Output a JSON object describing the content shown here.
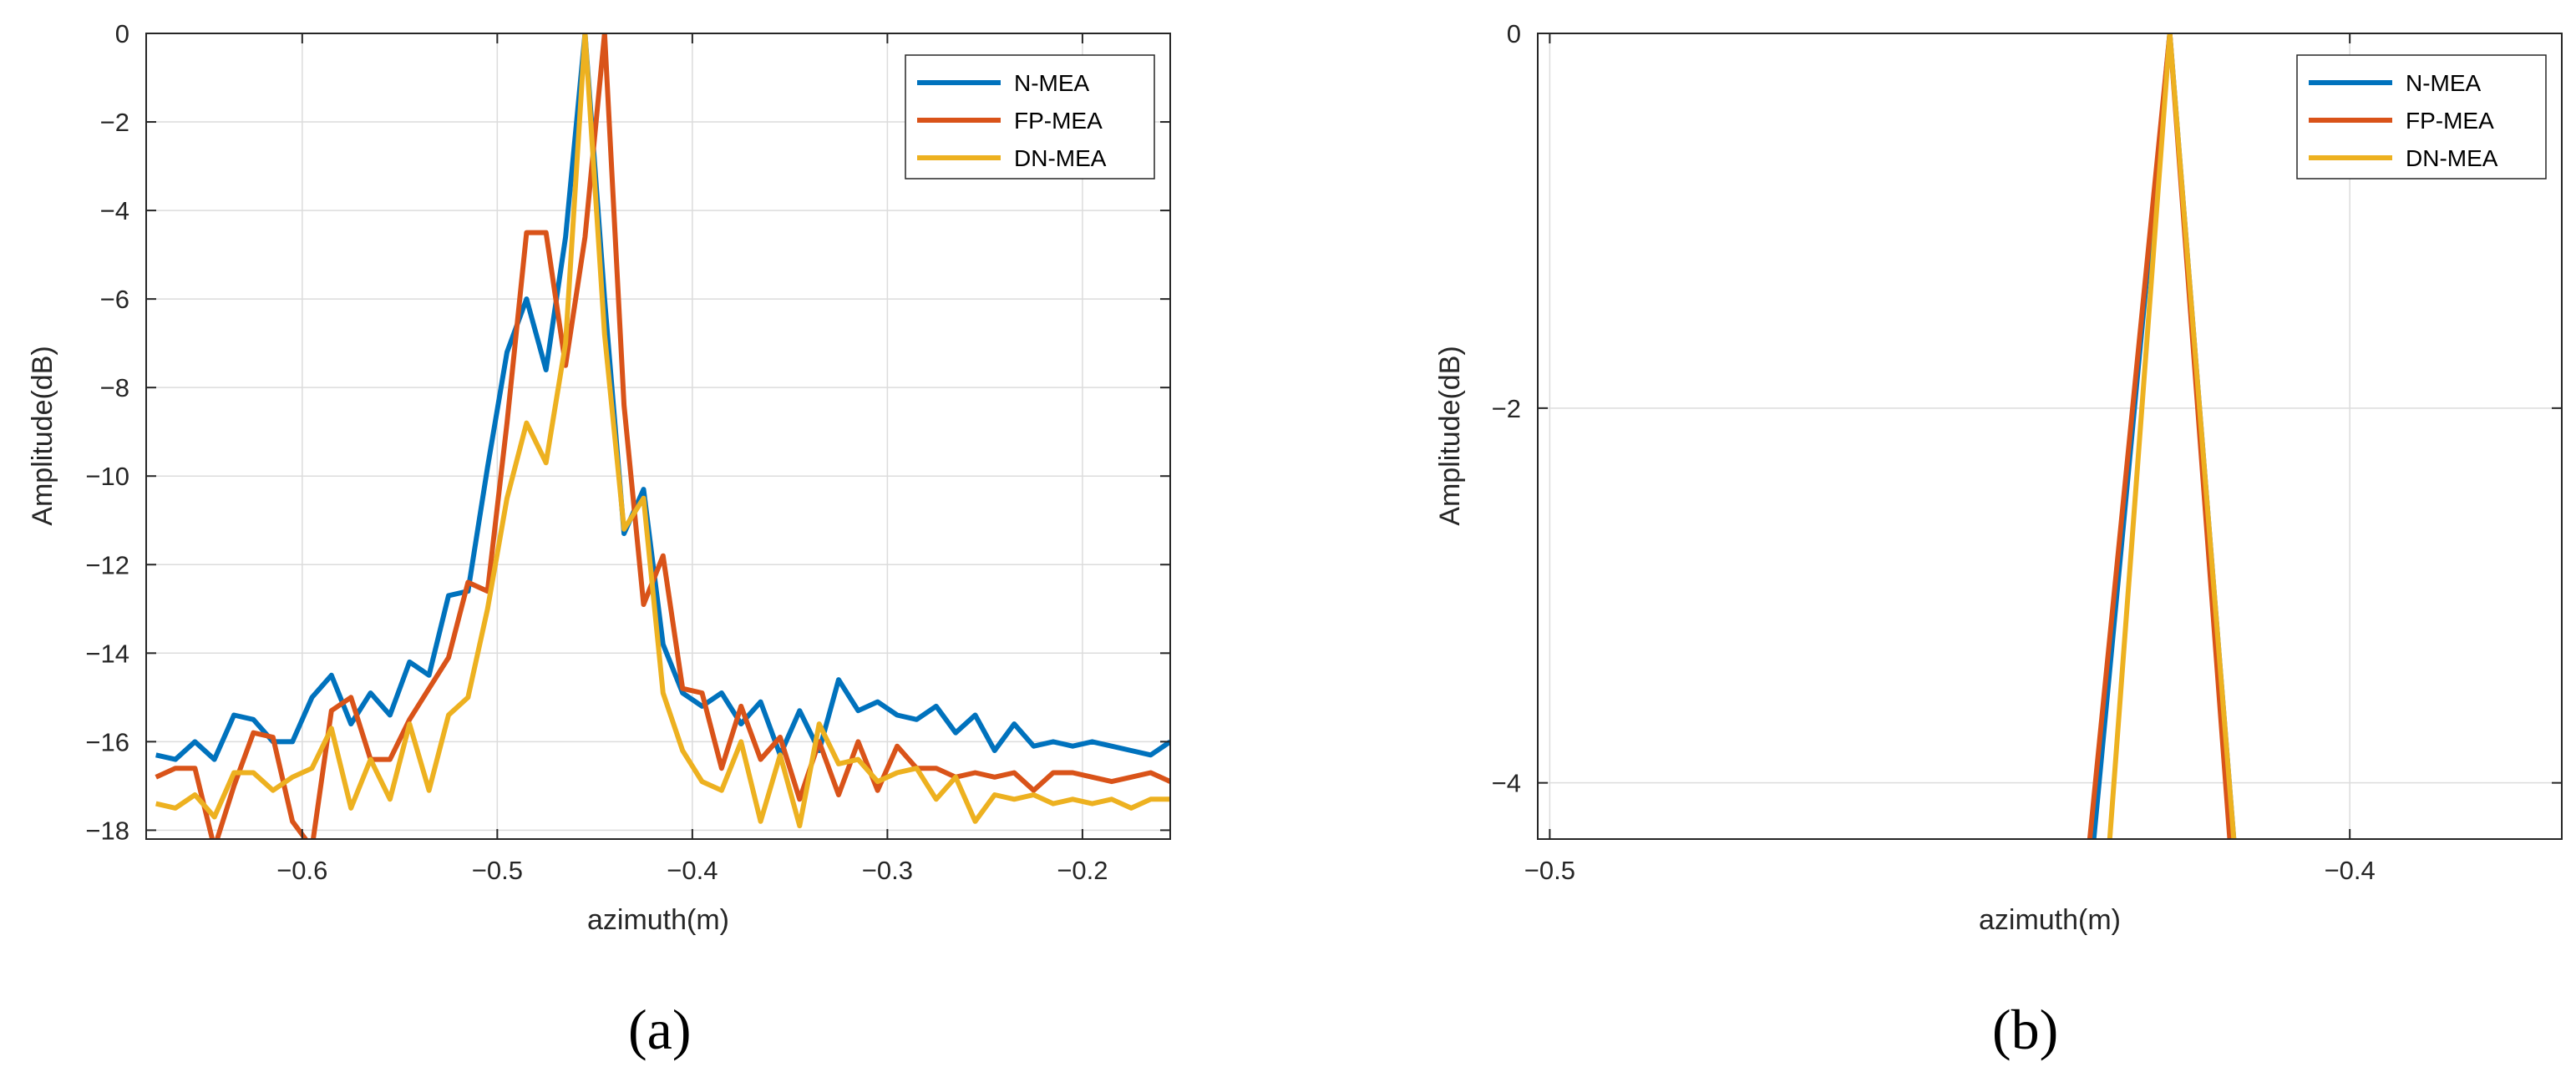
{
  "chart_data": [
    {
      "panel_label": "(a)",
      "type": "line",
      "xlabel": "azimuth(m)",
      "ylabel": "Amplitude(dB)",
      "xlim": [
        -0.68,
        -0.155
      ],
      "ylim": [
        -18.2,
        0
      ],
      "xticks": [
        -0.6,
        -0.5,
        -0.4,
        -0.3,
        -0.2
      ],
      "xtick_labels": [
        "-0.6",
        "-0.5",
        "-0.4",
        "-0.3",
        "-0.2"
      ],
      "yticks": [
        0,
        -2,
        -4,
        -6,
        -8,
        -10,
        -12,
        -14,
        -16,
        -18
      ],
      "ytick_labels": [
        "0",
        "-2",
        "-4",
        "-6",
        "-8",
        "-10",
        "-12",
        "-14",
        "-16",
        "-18"
      ],
      "grid": true,
      "legend_position": "top-right",
      "x": [
        -0.675,
        -0.665,
        -0.655,
        -0.645,
        -0.635,
        -0.625,
        -0.615,
        -0.605,
        -0.595,
        -0.585,
        -0.575,
        -0.565,
        -0.555,
        -0.545,
        -0.535,
        -0.525,
        -0.515,
        -0.505,
        -0.495,
        -0.485,
        -0.475,
        -0.465,
        -0.455,
        -0.445,
        -0.435,
        -0.425,
        -0.415,
        -0.405,
        -0.395,
        -0.385,
        -0.375,
        -0.365,
        -0.355,
        -0.345,
        -0.335,
        -0.325,
        -0.315,
        -0.305,
        -0.295,
        -0.285,
        -0.275,
        -0.265,
        -0.255,
        -0.245,
        -0.235,
        -0.225,
        -0.215,
        -0.205,
        -0.195,
        -0.185,
        -0.175,
        -0.165,
        -0.155
      ],
      "series": [
        {
          "name": "N-MEA",
          "color": "#0072BD",
          "values": [
            -16.3,
            -16.4,
            -16.0,
            -16.4,
            -15.4,
            -15.5,
            -16.0,
            -16.0,
            -15.0,
            -14.5,
            -15.6,
            -14.9,
            -15.4,
            -14.2,
            -14.5,
            -12.7,
            -12.6,
            -9.8,
            -7.2,
            -6.0,
            -7.6,
            -4.6,
            0.0,
            -6.0,
            -11.3,
            -10.3,
            -13.8,
            -14.9,
            -15.2,
            -14.9,
            -15.6,
            -15.1,
            -16.3,
            -15.3,
            -16.2,
            -14.6,
            -15.3,
            -15.1,
            -15.4,
            -15.5,
            -15.2,
            -15.8,
            -15.4,
            -16.2,
            -15.6,
            -16.1,
            -16.0,
            -16.1,
            -16.0,
            -16.1,
            -16.2,
            -16.3,
            -16.0
          ]
        },
        {
          "name": "FP-MEA",
          "color": "#D95319",
          "values": [
            -16.8,
            -16.6,
            -16.6,
            -18.4,
            -17.0,
            -15.8,
            -15.9,
            -17.8,
            -18.4,
            -15.3,
            -15.0,
            -16.4,
            -16.4,
            -15.5,
            -14.8,
            -14.1,
            -12.4,
            -12.6,
            -8.8,
            -4.5,
            -4.5,
            -7.5,
            -4.6,
            0.0,
            -8.4,
            -12.9,
            -11.8,
            -14.8,
            -14.9,
            -16.6,
            -15.2,
            -16.4,
            -15.9,
            -17.3,
            -16.0,
            -17.2,
            -16.0,
            -17.1,
            -16.1,
            -16.6,
            -16.6,
            -16.8,
            -16.7,
            -16.8,
            -16.7,
            -17.1,
            -16.7,
            -16.7,
            -16.8,
            -16.9,
            -16.8,
            -16.7,
            -16.9
          ]
        },
        {
          "name": "DN-MEA",
          "color": "#EDB120",
          "values": [
            -17.4,
            -17.5,
            -17.2,
            -17.7,
            -16.7,
            -16.7,
            -17.1,
            -16.8,
            -16.6,
            -15.7,
            -17.5,
            -16.4,
            -17.3,
            -15.6,
            -17.1,
            -15.4,
            -15.0,
            -13.0,
            -10.5,
            -8.8,
            -9.7,
            -7.0,
            0.0,
            -6.8,
            -11.2,
            -10.5,
            -14.9,
            -16.2,
            -16.9,
            -17.1,
            -16.0,
            -17.8,
            -16.3,
            -17.9,
            -15.6,
            -16.5,
            -16.4,
            -16.9,
            -16.7,
            -16.6,
            -17.3,
            -16.8,
            -17.8,
            -17.2,
            -17.3,
            -17.2,
            -17.4,
            -17.3,
            -17.4,
            -17.3,
            -17.5,
            -17.3,
            -17.3
          ]
        }
      ],
      "legend": [
        "N-MEA",
        "FP-MEA",
        "DN-MEA"
      ]
    },
    {
      "panel_label": "(b)",
      "type": "line",
      "xlabel": "azimuth(m)",
      "ylabel": "Amplitude(dB)",
      "xlim": [
        -0.5015,
        -0.3735
      ],
      "ylim": [
        -4.3,
        0
      ],
      "xticks": [
        -0.5,
        -0.4
      ],
      "xtick_labels": [
        "-0.5",
        "-0.4"
      ],
      "yticks": [
        0,
        -2,
        -4
      ],
      "ytick_labels": [
        "0",
        "-2",
        "-4"
      ],
      "grid": true,
      "legend_position": "top-right",
      "series": [
        {
          "name": "N-MEA",
          "color": "#0072BD",
          "x": [
            -0.432,
            -0.4225,
            -0.4145
          ],
          "values": [
            -4.3,
            0.0,
            -4.3
          ]
        },
        {
          "name": "FP-MEA",
          "color": "#D95319",
          "x": [
            -0.4325,
            -0.4225,
            -0.415
          ],
          "values": [
            -4.3,
            0.0,
            -4.3
          ]
        },
        {
          "name": "DN-MEA",
          "color": "#EDB120",
          "x": [
            -0.43,
            -0.4225,
            -0.4145
          ],
          "values": [
            -4.3,
            0.0,
            -4.3
          ]
        }
      ],
      "legend": [
        "N-MEA",
        "FP-MEA",
        "DN-MEA"
      ]
    }
  ]
}
